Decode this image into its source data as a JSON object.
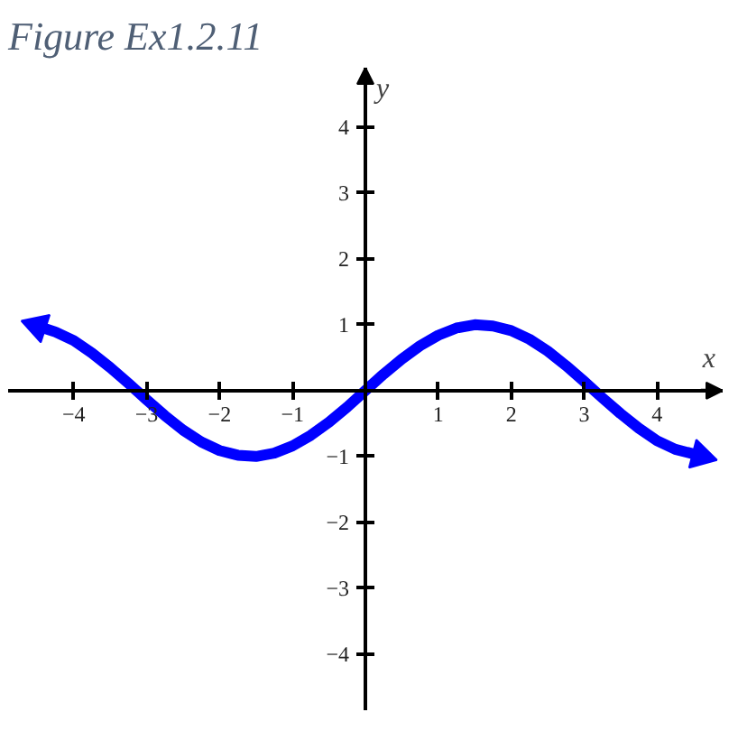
{
  "chart_data": {
    "type": "line",
    "title": "Figure Ex1.2.11",
    "xlabel": "x",
    "ylabel": "y",
    "x": [
      -4.5,
      -4.25,
      -4.0,
      -3.75,
      -3.5,
      -3.25,
      -3.0,
      -2.75,
      -2.5,
      -2.25,
      -2.0,
      -1.75,
      -1.5,
      -1.25,
      -1.0,
      -0.75,
      -0.5,
      -0.25,
      0,
      0.25,
      0.5,
      0.75,
      1.0,
      1.25,
      1.5,
      1.75,
      2.0,
      2.25,
      2.5,
      2.75,
      3.0,
      3.25,
      3.5,
      3.75,
      4.0,
      4.25,
      4.6
    ],
    "series": [
      {
        "color": "#0000ff",
        "values": [
          0.98,
          0.89,
          0.76,
          0.57,
          0.35,
          0.11,
          -0.14,
          -0.38,
          -0.6,
          -0.78,
          -0.91,
          -0.98,
          -1.0,
          -0.95,
          -0.84,
          -0.68,
          -0.48,
          -0.25,
          0,
          0.25,
          0.48,
          0.68,
          0.84,
          0.95,
          1.0,
          0.98,
          0.91,
          0.78,
          0.6,
          0.38,
          0.14,
          -0.11,
          -0.35,
          -0.57,
          -0.76,
          -0.89,
          -0.99
        ]
      }
    ],
    "xlim": [
      -4.9,
      4.9
    ],
    "ylim": [
      -4.85,
      4.9
    ],
    "xticks": [
      {
        "value": -4,
        "label": "−4"
      },
      {
        "value": -3,
        "label": "−3"
      },
      {
        "value": -2,
        "label": "−2"
      },
      {
        "value": -1,
        "label": "−1"
      },
      1,
      2,
      3,
      4
    ],
    "yticks": [
      {
        "value": -4,
        "label": "−4"
      },
      {
        "value": -3,
        "label": "−3"
      },
      {
        "value": -2,
        "label": "−2"
      },
      {
        "value": -1,
        "label": "−1"
      },
      1,
      2,
      3,
      4
    ],
    "grid": false,
    "line_style": "solid"
  }
}
